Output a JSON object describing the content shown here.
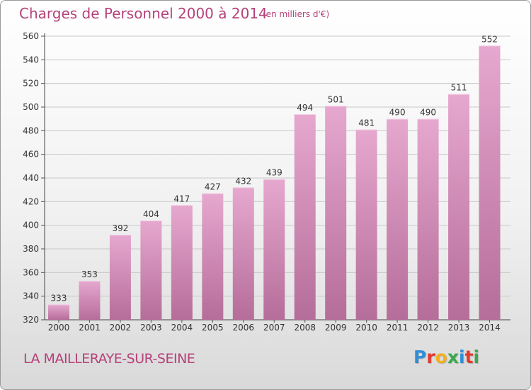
{
  "header": {
    "title": "Charges de Personnel 2000 à 2014",
    "subtitle": "(en milliers d'€)"
  },
  "footer": {
    "commune": "LA MAILLERAYE-SUR-SEINE",
    "logo": [
      "P",
      "r",
      "o",
      "x",
      "i",
      "t",
      "i"
    ]
  },
  "colors": {
    "title": "#b5427a",
    "bar_top": "#e6a8cf",
    "bar_bottom": "#b56d99",
    "logo": [
      "#2f8fd6",
      "#e23a2e",
      "#f2b01e",
      "#3aa84a",
      "#2f8fd6",
      "#e23a2e",
      "#3aa84a"
    ]
  },
  "chart_data": {
    "type": "bar",
    "title": "Charges de Personnel 2000 à 2014",
    "subtitle": "(en milliers d'€)",
    "categories": [
      "2000",
      "2001",
      "2002",
      "2003",
      "2004",
      "2005",
      "2006",
      "2007",
      "2008",
      "2009",
      "2010",
      "2011",
      "2012",
      "2013",
      "2014"
    ],
    "values": [
      333,
      353,
      392,
      404,
      417,
      427,
      432,
      439,
      494,
      501,
      481,
      490,
      490,
      511,
      552
    ],
    "ylim": [
      320,
      560
    ],
    "yticks": [
      320,
      340,
      360,
      380,
      400,
      420,
      440,
      460,
      480,
      500,
      520,
      540,
      560
    ],
    "grid": true,
    "xlabel": "",
    "ylabel": ""
  }
}
